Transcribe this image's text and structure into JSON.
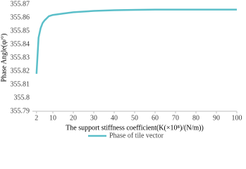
{
  "chart_data": {
    "type": "line",
    "x_label": "The support stiffness coefficient(K(×10⁸)/(N/m))",
    "y_label": "Phase Angle(φ/°)",
    "x": [
      2,
      3,
      4,
      5,
      6,
      8,
      10,
      15,
      20,
      30,
      40,
      50,
      60,
      70,
      80,
      90,
      100
    ],
    "series": [
      {
        "name": "Phase of tile vector",
        "color": "#5bbfc9",
        "values": [
          355.818,
          355.845,
          355.852,
          355.856,
          355.858,
          355.861,
          355.862,
          355.863,
          355.864,
          355.865,
          355.8655,
          355.8658,
          355.866,
          355.866,
          355.866,
          355.866,
          355.866
        ]
      }
    ],
    "xlim": [
      0,
      100
    ],
    "xticks": [
      2,
      10,
      20,
      30,
      40,
      50,
      60,
      70,
      80,
      90,
      100
    ],
    "ylim": [
      355.79,
      355.87
    ],
    "yticks": [
      355.79,
      355.8,
      355.81,
      355.82,
      355.83,
      355.84,
      355.85,
      355.86,
      355.87
    ],
    "grid": false
  }
}
